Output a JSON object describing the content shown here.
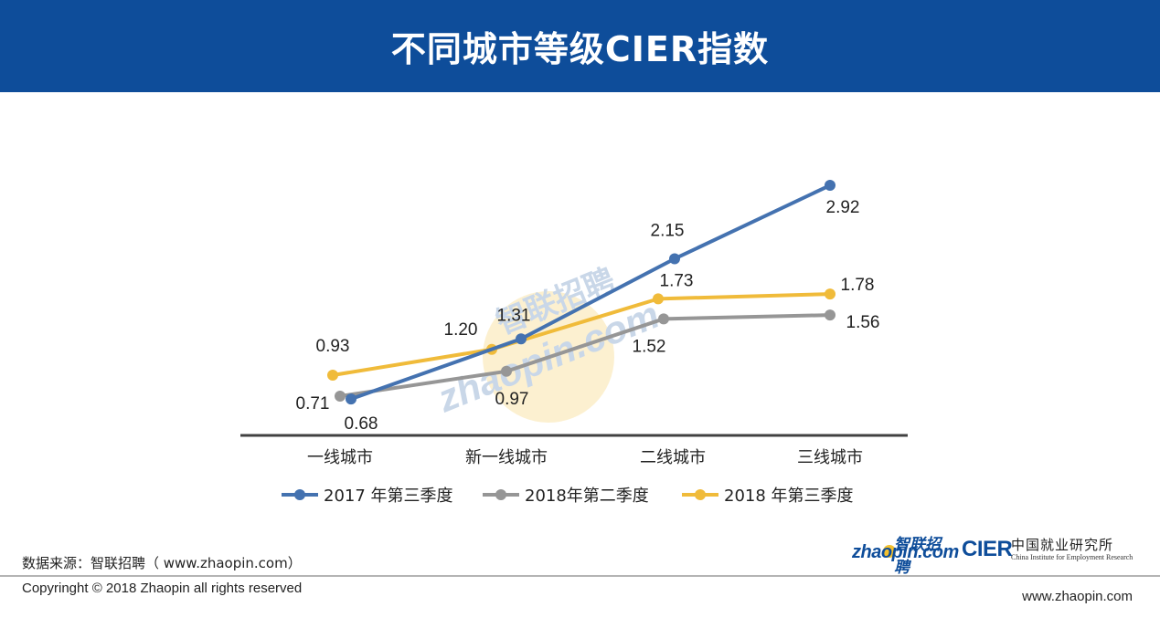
{
  "header": {
    "title": "不同城市等级CIER指数"
  },
  "chart_data": {
    "type": "line",
    "title": "不同城市等级CIER指数",
    "categories": [
      "一线城市",
      "新一线城市",
      "二线城市",
      "三线城市"
    ],
    "series": [
      {
        "name": "2017 年第三季度",
        "color": "#4472b0",
        "values": [
          0.68,
          1.31,
          2.15,
          2.92
        ],
        "labels": [
          "0.68",
          "1.31",
          "2.15",
          "2.92"
        ]
      },
      {
        "name": "2018年第二季度",
        "color": "#969696",
        "values": [
          0.71,
          0.97,
          1.52,
          1.56
        ],
        "labels": [
          "0.71",
          "0.97",
          "1.52",
          "1.56"
        ]
      },
      {
        "name": "2018 年第三季度",
        "color": "#f0bb3a",
        "values": [
          0.93,
          1.2,
          1.73,
          1.78
        ],
        "labels": [
          "0.93",
          "1.20",
          "1.73",
          "1.78"
        ]
      }
    ],
    "ylim": [
      0.5,
      3.0
    ],
    "grid": false,
    "legend_position": "bottom"
  },
  "watermark": {
    "cn": "智联招聘",
    "en": "zhaopin.com"
  },
  "footer": {
    "source": "数据来源：智联招聘（ www.zhaopin.com）",
    "copyright": "Copyringht © 2018 Zhaopin all rights reserved",
    "site": "www.zhaopin.com",
    "logo_zhaopin_cn": "智联招聘",
    "logo_zhaopin_en": "zhaopin.com",
    "logo_cier": "CIER",
    "logo_cier_cn": "中国就业研究所",
    "logo_cier_en": "China Institute for Employment Research"
  }
}
